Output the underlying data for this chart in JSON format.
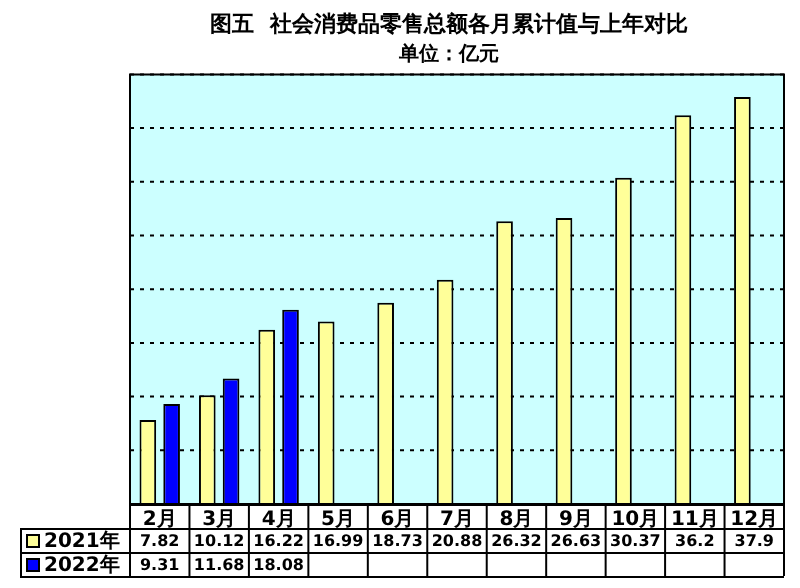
{
  "chart_data": {
    "type": "bar",
    "title": "图五  社会消费品零售总额各月累计值与上年对比",
    "subtitle": "单位：亿元",
    "categories": [
      "2月",
      "3月",
      "4月",
      "5月",
      "6月",
      "7月",
      "8月",
      "9月",
      "10月",
      "11月",
      "12月"
    ],
    "series": [
      {
        "name": "2021年",
        "color": "#ffff99",
        "values": [
          7.82,
          10.12,
          16.22,
          16.99,
          18.73,
          20.88,
          26.32,
          26.63,
          30.37,
          36.2,
          37.9
        ]
      },
      {
        "name": "2022年",
        "color": "#0000ff",
        "values": [
          9.31,
          11.68,
          18.08,
          null,
          null,
          null,
          null,
          null,
          null,
          null,
          null
        ]
      }
    ],
    "ylim": [
      0,
      40
    ],
    "yticks": [
      0,
      5,
      10,
      15,
      20,
      25,
      30,
      35,
      40
    ],
    "tick_labels": "x",
    "grid": "y",
    "legend": "bottom",
    "data_labels": true
  }
}
